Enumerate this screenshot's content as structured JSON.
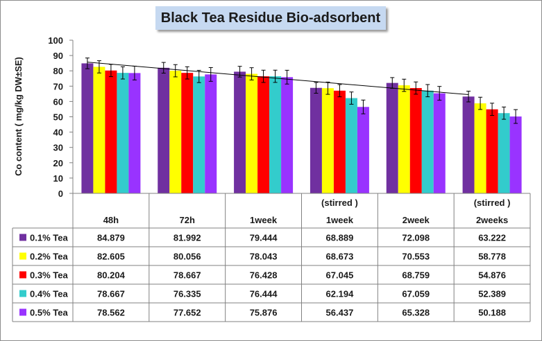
{
  "chart_data": {
    "type": "bar",
    "title": "Black Tea Residue Bio-adsorbent",
    "ylabel": "Co content ( mg/kg DW±SE)",
    "xlabel": "",
    "ylim": [
      0,
      100
    ],
    "yticks": [
      0,
      10,
      20,
      30,
      40,
      50,
      60,
      70,
      80,
      90,
      100
    ],
    "categories": [
      {
        "top": "",
        "bottom": "48h"
      },
      {
        "top": "",
        "bottom": "72h"
      },
      {
        "top": "",
        "bottom": "1week"
      },
      {
        "top": "(stirred )",
        "bottom": "1week"
      },
      {
        "top": "",
        "bottom": "2week"
      },
      {
        "top": "(stirred )",
        "bottom": "2weeks"
      }
    ],
    "series": [
      {
        "name": "0.1% Tea",
        "color": "#7030a0",
        "values": [
          84.879,
          81.992,
          79.444,
          68.889,
          72.098,
          63.222
        ],
        "labels": [
          "84.879",
          "81.992",
          "79.444",
          "68.889",
          "72.098",
          "63.222"
        ],
        "errors": [
          3.5,
          3.5,
          3.5,
          3.5,
          3.5,
          3.5
        ]
      },
      {
        "name": "0.2% Tea",
        "color": "#ffff00",
        "values": [
          82.605,
          80.056,
          78.043,
          68.673,
          70.553,
          58.778
        ],
        "labels": [
          "82.605",
          "80.056",
          "78.043",
          "68.673",
          "70.553",
          "58.778"
        ],
        "errors": [
          4,
          4,
          4,
          4,
          4,
          4
        ]
      },
      {
        "name": "0.3% Tea",
        "color": "#ff0000",
        "values": [
          80.204,
          78.667,
          76.428,
          67.045,
          68.759,
          54.876
        ],
        "labels": [
          "80.204",
          "78.667",
          "76.428",
          "67.045",
          "68.759",
          "54.876"
        ],
        "errors": [
          4,
          4,
          4,
          4,
          4,
          4
        ]
      },
      {
        "name": "0.4% Tea",
        "color": "#33cccc",
        "values": [
          78.667,
          76.335,
          76.444,
          62.194,
          67.059,
          52.389
        ],
        "labels": [
          "78.667",
          "76.335",
          "76.444",
          "62.194",
          "67.059",
          "52.389"
        ],
        "errors": [
          4,
          4,
          4,
          4,
          4,
          4
        ]
      },
      {
        "name": "0.5% Tea",
        "color": "#9933ff",
        "values": [
          78.562,
          77.652,
          75.876,
          56.437,
          65.328,
          50.188
        ],
        "labels": [
          "78.562",
          "77.652",
          "75.876",
          "56.437",
          "65.328",
          "50.188"
        ],
        "errors": [
          4.5,
          4.5,
          4.5,
          4.5,
          4.5,
          4.5
        ]
      }
    ],
    "trendline": {
      "type": "linear",
      "series": "0.1% Tea",
      "color": "#000000"
    },
    "grid": false,
    "legend": "data-table"
  }
}
